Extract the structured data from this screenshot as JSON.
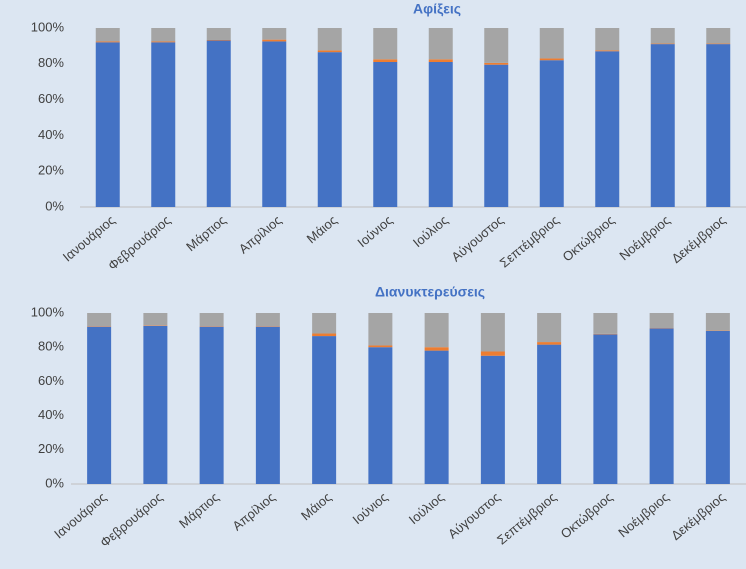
{
  "chart_data": [
    {
      "type": "stacked-bar",
      "title": "Αφίξεις",
      "categories": [
        "Ιανουάριος",
        "Φεβρουάριος",
        "Μάρτιος",
        "Απρίλιος",
        "Μάιος",
        "Ιούνιος",
        "Ιούλιος",
        "Αύγουστος",
        "Σεπτέμβριος",
        "Οκτώβριος",
        "Νοέμβριος",
        "Δεκέμβριος"
      ],
      "series": [
        {
          "color": "#4472c4",
          "values": [
            92,
            92,
            93,
            92.5,
            86.5,
            81,
            81,
            79.5,
            82,
            87,
            91,
            91
          ]
        },
        {
          "color": "#ed7d31",
          "values": [
            0.5,
            0.5,
            0.3,
            1,
            1,
            1.5,
            1.5,
            1,
            1,
            0.5,
            0.3,
            0.3
          ]
        },
        {
          "color": "#a5a5a5",
          "values": [
            7.5,
            7.5,
            6.7,
            6.5,
            12.5,
            17.5,
            17.5,
            19.5,
            17,
            12.5,
            8.7,
            8.7
          ]
        }
      ],
      "ylim": [
        0,
        100
      ],
      "yticks": [
        {
          "value": 0,
          "label": "0%"
        },
        {
          "value": 20,
          "label": "20%"
        },
        {
          "value": 40,
          "label": "40%"
        },
        {
          "value": 60,
          "label": "60%"
        },
        {
          "value": 80,
          "label": "80%"
        },
        {
          "value": 100,
          "label": "100%"
        }
      ],
      "grid": false
    },
    {
      "type": "stacked-bar",
      "title": "Διανυκτερεύσεις",
      "categories": [
        "Ιανουάριος",
        "Φεβρουάριος",
        "Μάρτιος",
        "Απρίλιος",
        "Μάιος",
        "Ιούνιος",
        "Ιούλιος",
        "Αύγουστος",
        "Σεπτέμβριος",
        "Οκτώβριος",
        "Νοέμβριος",
        "Δεκέμβριος"
      ],
      "series": [
        {
          "color": "#4472c4",
          "values": [
            92,
            92.5,
            92,
            92,
            86.5,
            80,
            78,
            75,
            81.5,
            87.5,
            91,
            89.5
          ]
        },
        {
          "color": "#ed7d31",
          "values": [
            0.3,
            0.3,
            0.3,
            0.3,
            1.5,
            1,
            2,
            2.5,
            1.5,
            0.3,
            0.2,
            0.2
          ]
        },
        {
          "color": "#a5a5a5",
          "values": [
            7.7,
            7.2,
            7.7,
            7.7,
            12,
            19,
            20,
            22.5,
            17,
            12.2,
            8.8,
            10.3
          ]
        }
      ],
      "ylim": [
        0,
        100
      ],
      "yticks": [
        {
          "value": 0,
          "label": "0%"
        },
        {
          "value": 20,
          "label": "20%"
        },
        {
          "value": 40,
          "label": "40%"
        },
        {
          "value": 60,
          "label": "60%"
        },
        {
          "value": 80,
          "label": "80%"
        },
        {
          "value": 100,
          "label": "100%"
        }
      ],
      "grid": false
    }
  ]
}
